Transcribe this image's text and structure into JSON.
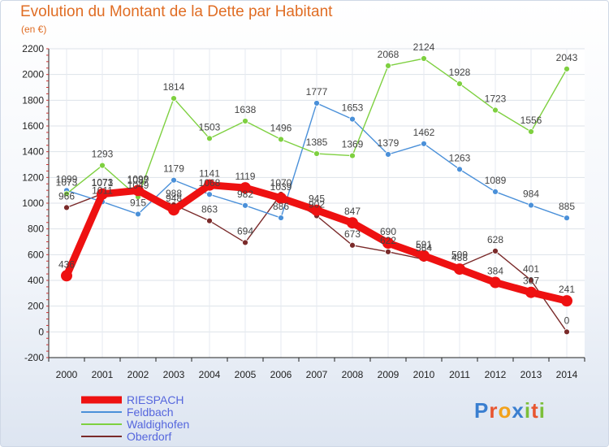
{
  "title": "Evolution du Montant de la Dette par Habitant",
  "subtitle": "(en €)",
  "logo": {
    "text": "Proxiti",
    "letter_colors": [
      "#3a7fd0",
      "#e8552f",
      "#f2a21c",
      "#3a7fd0",
      "#7cbf3a",
      "#e8552f",
      "#7cbf3a"
    ]
  },
  "chart_data": {
    "type": "line",
    "x": [
      "2000",
      "2001",
      "2002",
      "2003",
      "2004",
      "2005",
      "2006",
      "2007",
      "2008",
      "2009",
      "2010",
      "2011",
      "2012",
      "2013",
      "2014"
    ],
    "ylim": [
      -200,
      2200
    ],
    "yticks": [
      -200,
      0,
      200,
      400,
      600,
      800,
      1000,
      1200,
      1400,
      1600,
      1800,
      2000,
      2200
    ],
    "grid": true,
    "legend_position": "bottom-left",
    "series": [
      {
        "name": "Oberdorf",
        "color": "#7a2a2a",
        "values": [
          966,
          1073,
          1087,
          988,
          863,
          694,
          1070,
          902,
          673,
          622,
          564,
          509,
          628,
          401,
          0
        ],
        "labels": [
          "966",
          "1073",
          "1087",
          "988",
          "863",
          "694",
          "1070",
          "902",
          "673",
          "622",
          "564",
          "509",
          "628",
          "401",
          "0"
        ]
      },
      {
        "name": "Feldbach",
        "color": "#4a90d9",
        "values": [
          1099,
          1011,
          915,
          1179,
          1068,
          982,
          886,
          1777,
          1653,
          1379,
          1462,
          1263,
          1089,
          984,
          885
        ],
        "labels": [
          "1099",
          "1011",
          "915",
          "1179",
          "1068",
          "982",
          "886",
          "1777",
          "1653",
          "1379",
          "1462",
          "1263",
          "1089",
          "984",
          "885"
        ]
      },
      {
        "name": "Waldighofen",
        "color": "#7ed040",
        "values": [
          1073,
          1293,
          1049,
          1814,
          1503,
          1638,
          1496,
          1385,
          1369,
          2068,
          2124,
          1928,
          1723,
          1556,
          2043
        ],
        "labels": [
          "1073",
          "1293",
          "1049",
          "1814",
          "1503",
          "1638",
          "1496",
          "1385",
          "1369",
          "2068",
          "2124",
          "1928",
          "1723",
          "1556",
          "2043"
        ]
      },
      {
        "name": "RIESPACH",
        "color": "#ee1111",
        "values": [
          436,
          1071,
          1099,
          948,
          1141,
          1119,
          1039,
          945,
          847,
          690,
          591,
          488,
          384,
          307,
          241
        ],
        "labels": [
          "436",
          "1071",
          "1099",
          "948",
          "1141",
          "1119",
          "1039",
          "945",
          "847",
          "690",
          "591",
          "488",
          "384",
          "307",
          "241"
        ]
      }
    ],
    "legend": [
      "RIESPACH",
      "Feldbach",
      "Waldighofen",
      "Oberdorf"
    ]
  }
}
